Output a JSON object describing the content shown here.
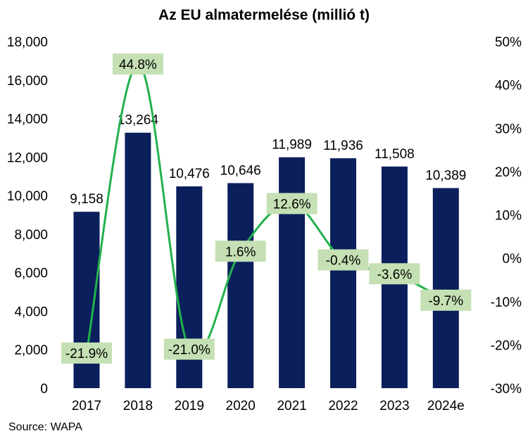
{
  "title": "Az EU almatermelése (millió t)",
  "source": "Source: WAPA",
  "colors": {
    "bar": "#0b1f5c",
    "line": "#22b14c",
    "label_bg": "#c5e0b4"
  },
  "chart_data": {
    "type": "bar",
    "title": "Az EU almatermelése (millió t)",
    "categories": [
      "2017",
      "2018",
      "2019",
      "2020",
      "2021",
      "2022",
      "2023",
      "2024e"
    ],
    "series": [
      {
        "type": "bar",
        "axis": "left",
        "values": [
          9158,
          13264,
          10476,
          10646,
          11989,
          11936,
          11508,
          10389
        ],
        "labels": [
          "9,158",
          "13,264",
          "10,476",
          "10,646",
          "11,989",
          "11,936",
          "11,508",
          "10,389"
        ]
      },
      {
        "type": "line",
        "axis": "right",
        "smooth": true,
        "values": [
          -21.9,
          44.8,
          -21.0,
          1.6,
          12.6,
          -0.4,
          -3.6,
          -9.7
        ],
        "labels": [
          "-21.9%",
          "44.8%",
          "-21.0%",
          "1.6%",
          "12.6%",
          "-0.4%",
          "-3.6%",
          "-9.7%"
        ]
      }
    ],
    "y_left": {
      "lim": [
        0,
        18000
      ],
      "ticks": [
        0,
        2000,
        4000,
        6000,
        8000,
        10000,
        12000,
        14000,
        16000,
        18000
      ],
      "tick_labels": [
        "0",
        "2,000",
        "4,000",
        "6,000",
        "8,000",
        "10,000",
        "12,000",
        "14,000",
        "16,000",
        "18,000"
      ]
    },
    "y_right": {
      "lim": [
        -30,
        50
      ],
      "ticks": [
        -30,
        -20,
        -10,
        0,
        10,
        20,
        30,
        40,
        50
      ],
      "tick_labels": [
        "-30%",
        "-20%",
        "-10%",
        "0%",
        "10%",
        "20%",
        "30%",
        "40%",
        "50%"
      ]
    },
    "grid": false,
    "legend": "none"
  }
}
